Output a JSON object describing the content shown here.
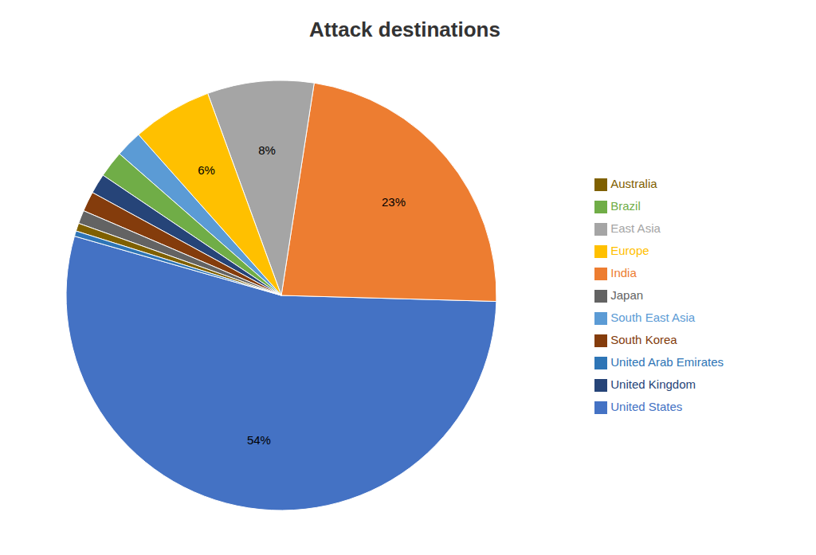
{
  "chart_data": {
    "type": "pie",
    "title": "Attack destinations",
    "categories": [
      "United States",
      "India",
      "East Asia",
      "Europe",
      "South East Asia",
      "Brazil",
      "United Kingdom",
      "South Korea",
      "Japan",
      "Australia",
      "United Arab Emirates"
    ],
    "values": [
      54,
      23,
      8,
      6,
      2,
      2,
      1.5,
      1.5,
      1,
      0.6,
      0.4
    ],
    "value_labels": [
      "54%",
      "23%",
      "8%",
      "6%",
      null,
      null,
      null,
      null,
      null,
      null,
      null
    ],
    "data_labels": true,
    "colors": [
      "#4472C4",
      "#ED7D31",
      "#A5A5A5",
      "#FFC000",
      "#5B9BD5",
      "#70AD47",
      "#264478",
      "#843C0C",
      "#636363",
      "#7F6000",
      "#2E75B6"
    ],
    "legend": "right"
  }
}
